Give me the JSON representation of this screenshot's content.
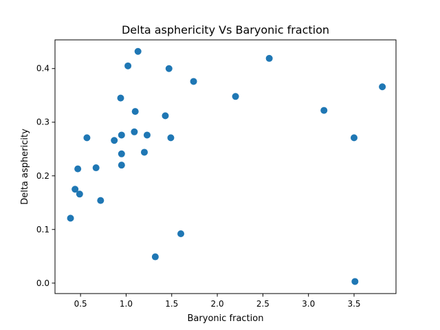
{
  "chart_data": {
    "type": "scatter",
    "title": "Delta asphericity Vs Baryonic fraction",
    "xlabel": "Baryonic fraction",
    "ylabel": "Delta asphericity",
    "xlim": [
      0.22,
      3.96
    ],
    "ylim": [
      -0.0195,
      0.4535
    ],
    "x_ticks": [
      0.5,
      1.0,
      1.5,
      2.0,
      2.5,
      3.0,
      3.5
    ],
    "x_tick_labels": [
      "0.5",
      "1.0",
      "1.5",
      "2.0",
      "2.5",
      "3.0",
      "3.5"
    ],
    "y_ticks": [
      0.0,
      0.1,
      0.2,
      0.3,
      0.4
    ],
    "y_tick_labels": [
      "0.0",
      "0.1",
      "0.2",
      "0.3",
      "0.4"
    ],
    "grid": false,
    "marker_color": "#1f77b4",
    "points": [
      {
        "x": 0.39,
        "y": 0.121
      },
      {
        "x": 0.44,
        "y": 0.175
      },
      {
        "x": 0.47,
        "y": 0.213
      },
      {
        "x": 0.49,
        "y": 0.166
      },
      {
        "x": 0.57,
        "y": 0.271
      },
      {
        "x": 0.67,
        "y": 0.215
      },
      {
        "x": 0.72,
        "y": 0.154
      },
      {
        "x": 0.87,
        "y": 0.266
      },
      {
        "x": 0.94,
        "y": 0.345
      },
      {
        "x": 0.95,
        "y": 0.276
      },
      {
        "x": 0.95,
        "y": 0.241
      },
      {
        "x": 0.95,
        "y": 0.22
      },
      {
        "x": 1.02,
        "y": 0.405
      },
      {
        "x": 1.09,
        "y": 0.282
      },
      {
        "x": 1.1,
        "y": 0.32
      },
      {
        "x": 1.13,
        "y": 0.432
      },
      {
        "x": 1.2,
        "y": 0.244
      },
      {
        "x": 1.23,
        "y": 0.276
      },
      {
        "x": 1.32,
        "y": 0.049
      },
      {
        "x": 1.43,
        "y": 0.312
      },
      {
        "x": 1.47,
        "y": 0.4
      },
      {
        "x": 1.49,
        "y": 0.271
      },
      {
        "x": 1.6,
        "y": 0.092
      },
      {
        "x": 1.74,
        "y": 0.376
      },
      {
        "x": 2.2,
        "y": 0.348
      },
      {
        "x": 2.57,
        "y": 0.419
      },
      {
        "x": 3.17,
        "y": 0.322
      },
      {
        "x": 3.5,
        "y": 0.271
      },
      {
        "x": 3.51,
        "y": 0.003
      },
      {
        "x": 3.81,
        "y": 0.366
      }
    ]
  }
}
